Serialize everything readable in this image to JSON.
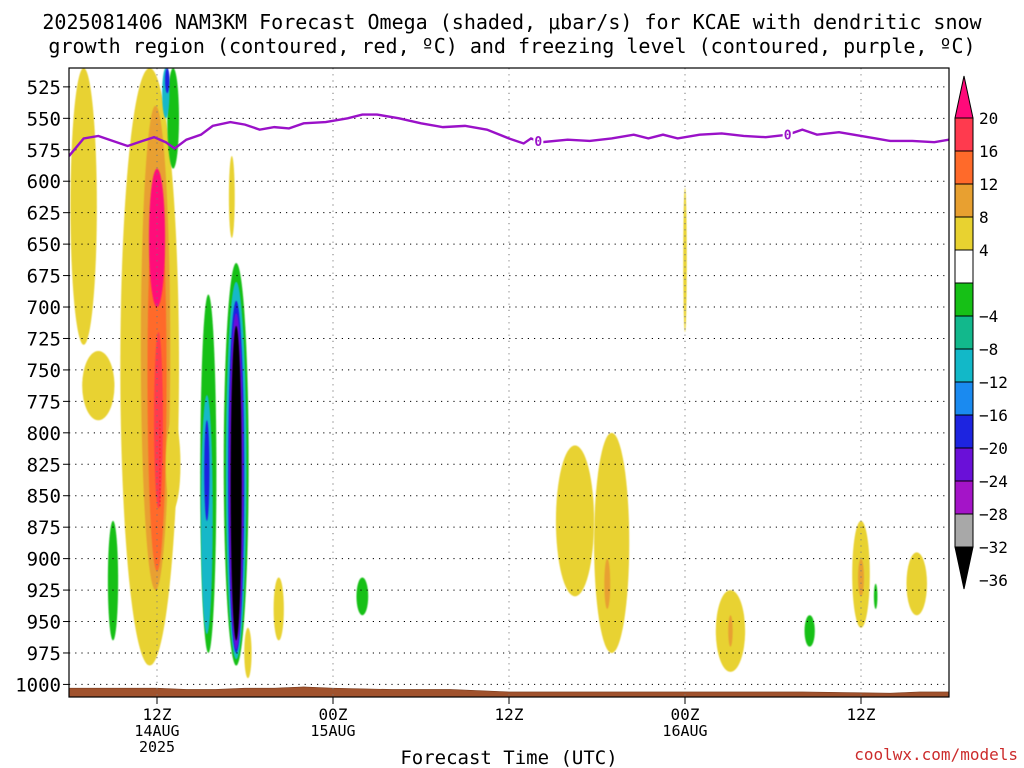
{
  "title_line1": "2025081406 NAM3KM Forecast Omega (shaded, μbar/s) for KCAE with dendritic snow",
  "title_line2": "growth region (contoured, red, ºC) and freezing level (contoured, purple, ºC)",
  "credit": "coolwx.com/models",
  "chart_data": {
    "type": "contour-shaded time-height section",
    "xlabel": "Forecast Time (UTC)",
    "x_ticks": [
      {
        "hour": 12,
        "lines": [
          "12Z",
          "14AUG",
          "2025"
        ]
      },
      {
        "hour": 24,
        "lines": [
          "00Z",
          "15AUG"
        ]
      },
      {
        "hour": 36,
        "lines": [
          "12Z"
        ]
      },
      {
        "hour": 48,
        "lines": [
          "00Z",
          "16AUG"
        ]
      },
      {
        "hour": 60,
        "lines": [
          "12Z"
        ]
      }
    ],
    "xlim_hours": [
      6,
      66
    ],
    "y_ticks": [
      525,
      550,
      575,
      600,
      625,
      650,
      675,
      700,
      725,
      750,
      775,
      800,
      825,
      850,
      875,
      900,
      925,
      950,
      975,
      1000
    ],
    "ylim_hPa": [
      510,
      1010
    ],
    "grid": true,
    "colorbar": {
      "labels": [
        "20",
        "16",
        "12",
        "8",
        "4",
        "−4",
        "−8",
        "−12",
        "−16",
        "−20",
        "−24",
        "−28",
        "−32",
        "−36"
      ],
      "bands": [
        {
          "lo": 16,
          "hi": 20,
          "color": "#ff3a4e"
        },
        {
          "lo": 12,
          "hi": 16,
          "color": "#ff6a2a"
        },
        {
          "lo": 8,
          "hi": 12,
          "color": "#e8a030"
        },
        {
          "lo": 4,
          "hi": 8,
          "color": "#e8d230"
        },
        {
          "lo": -4,
          "hi": 4,
          "color": "#ffffff"
        },
        {
          "lo": -8,
          "hi": -4,
          "color": "#16c016"
        },
        {
          "lo": -12,
          "hi": -8,
          "color": "#12b88c"
        },
        {
          "lo": -16,
          "hi": -12,
          "color": "#12b8c8"
        },
        {
          "lo": -20,
          "hi": -16,
          "color": "#1a8af0"
        },
        {
          "lo": -24,
          "hi": -20,
          "color": "#1d24e0"
        },
        {
          "lo": -28,
          "hi": -24,
          "color": "#6a10d8"
        },
        {
          "lo": -32,
          "hi": -28,
          "color": "#a414c8"
        },
        {
          "lo": -36,
          "hi": -32,
          "color": "#a8a8a8"
        }
      ],
      "top_arrow": "#ff0a7a",
      "bottom_arrow": "#000000"
    },
    "omega_blobs": [
      {
        "t": 7.0,
        "p0": 510,
        "p1": 730,
        "w": 0.9,
        "value": 5
      },
      {
        "t": 8.0,
        "p0": 735,
        "p1": 790,
        "w": 1.1,
        "value": 5
      },
      {
        "t": 9.0,
        "p0": 870,
        "p1": 965,
        "w": 0.35,
        "value": -6
      },
      {
        "t": 11.5,
        "p0": 510,
        "p1": 985,
        "w": 2.0,
        "value": 6
      },
      {
        "t": 11.9,
        "p0": 540,
        "p1": 925,
        "w": 1.0,
        "value": 9
      },
      {
        "t": 12.0,
        "p0": 600,
        "p1": 910,
        "w": 0.65,
        "value": 14
      },
      {
        "t": 12.0,
        "p0": 590,
        "p1": 700,
        "w": 0.55,
        "value": 22
      },
      {
        "t": 12.1,
        "p0": 720,
        "p1": 860,
        "w": 0.3,
        "value": 18
      },
      {
        "t": 13.1,
        "p0": 510,
        "p1": 590,
        "w": 0.4,
        "value": -6
      },
      {
        "t": 12.6,
        "p0": 510,
        "p1": 550,
        "w": 0.25,
        "value": -13
      },
      {
        "t": 12.7,
        "p0": 510,
        "p1": 530,
        "w": 0.15,
        "value": -22
      },
      {
        "t": 13.1,
        "p0": 790,
        "p1": 860,
        "w": 0.5,
        "value": 5
      },
      {
        "t": 15.5,
        "p0": 690,
        "p1": 975,
        "w": 0.55,
        "value": -6
      },
      {
        "t": 15.4,
        "p0": 770,
        "p1": 960,
        "w": 0.4,
        "value": -13
      },
      {
        "t": 15.4,
        "p0": 790,
        "p1": 870,
        "w": 0.18,
        "value": -22
      },
      {
        "t": 17.4,
        "p0": 665,
        "p1": 985,
        "w": 0.85,
        "value": -6
      },
      {
        "t": 17.4,
        "p0": 680,
        "p1": 980,
        "w": 0.7,
        "value": -14
      },
      {
        "t": 17.4,
        "p0": 695,
        "p1": 975,
        "w": 0.55,
        "value": -22
      },
      {
        "t": 17.4,
        "p0": 705,
        "p1": 972,
        "w": 0.48,
        "value": -28
      },
      {
        "t": 17.4,
        "p0": 715,
        "p1": 965,
        "w": 0.38,
        "value": -45
      },
      {
        "t": 18.2,
        "p0": 955,
        "p1": 995,
        "w": 0.25,
        "value": 5
      },
      {
        "t": 17.1,
        "p0": 580,
        "p1": 645,
        "w": 0.2,
        "value": 5
      },
      {
        "t": 20.3,
        "p0": 915,
        "p1": 965,
        "w": 0.35,
        "value": 5
      },
      {
        "t": 26.0,
        "p0": 915,
        "p1": 945,
        "w": 0.4,
        "value": -6
      },
      {
        "t": 40.5,
        "p0": 810,
        "p1": 930,
        "w": 1.3,
        "value": 5
      },
      {
        "t": 43.0,
        "p0": 800,
        "p1": 975,
        "w": 1.2,
        "value": 5
      },
      {
        "t": 42.7,
        "p0": 900,
        "p1": 940,
        "w": 0.2,
        "value": 9
      },
      {
        "t": 48.0,
        "p0": 605,
        "p1": 720,
        "w": 0.12,
        "value": 5
      },
      {
        "t": 51.1,
        "p0": 925,
        "p1": 990,
        "w": 1.0,
        "value": 5
      },
      {
        "t": 51.1,
        "p0": 945,
        "p1": 970,
        "w": 0.15,
        "value": 9
      },
      {
        "t": 56.5,
        "p0": 945,
        "p1": 970,
        "w": 0.35,
        "value": -6
      },
      {
        "t": 60.0,
        "p0": 870,
        "p1": 955,
        "w": 0.6,
        "value": 5
      },
      {
        "t": 60.0,
        "p0": 900,
        "p1": 930,
        "w": 0.2,
        "value": 9
      },
      {
        "t": 61.0,
        "p0": 920,
        "p1": 940,
        "w": 0.12,
        "value": -6
      },
      {
        "t": 63.8,
        "p0": 895,
        "p1": 945,
        "w": 0.7,
        "value": 5
      }
    ],
    "freezing_level": {
      "label": "0",
      "label_hours": [
        38.0,
        55.0
      ],
      "points": [
        [
          6.0,
          580
        ],
        [
          7.0,
          566
        ],
        [
          8.0,
          564
        ],
        [
          9.0,
          568
        ],
        [
          10.0,
          572
        ],
        [
          11.0,
          568
        ],
        [
          11.8,
          565
        ],
        [
          12.6,
          569
        ],
        [
          13.2,
          574
        ],
        [
          14.0,
          567
        ],
        [
          15.0,
          563
        ],
        [
          15.8,
          556
        ],
        [
          17.0,
          553
        ],
        [
          18.0,
          555
        ],
        [
          19.0,
          559
        ],
        [
          20.0,
          557
        ],
        [
          21.0,
          558
        ],
        [
          22.0,
          554
        ],
        [
          23.5,
          553
        ],
        [
          25.0,
          550
        ],
        [
          26.0,
          547
        ],
        [
          27.0,
          547
        ],
        [
          28.5,
          550
        ],
        [
          30.0,
          554
        ],
        [
          31.5,
          557
        ],
        [
          33.0,
          556
        ],
        [
          34.5,
          559
        ],
        [
          36.0,
          566
        ],
        [
          37.0,
          570
        ],
        [
          37.5,
          566
        ],
        [
          38.2,
          569
        ],
        [
          40.0,
          567
        ],
        [
          41.5,
          568
        ],
        [
          43.0,
          566
        ],
        [
          44.5,
          563
        ],
        [
          45.5,
          566
        ],
        [
          46.5,
          563
        ],
        [
          47.5,
          566
        ],
        [
          49.0,
          563
        ],
        [
          50.5,
          562
        ],
        [
          52.0,
          564
        ],
        [
          53.5,
          565
        ],
        [
          55.0,
          563
        ],
        [
          56.0,
          559
        ],
        [
          57.0,
          563
        ],
        [
          58.5,
          561
        ],
        [
          59.5,
          563
        ],
        [
          61.0,
          566
        ],
        [
          62.0,
          568
        ],
        [
          63.5,
          568
        ],
        [
          65.0,
          569
        ],
        [
          66.0,
          567
        ]
      ]
    },
    "dgz_contours": [
      {
        "t": 12.2,
        "p0": 790,
        "p1": 860
      }
    ],
    "terrain": {
      "points": [
        [
          6.0,
          1003
        ],
        [
          12.0,
          1003
        ],
        [
          14.0,
          1004
        ],
        [
          16.0,
          1004
        ],
        [
          18.0,
          1003
        ],
        [
          20.0,
          1003
        ],
        [
          22.0,
          1002
        ],
        [
          24.0,
          1003
        ],
        [
          28.0,
          1004
        ],
        [
          32.0,
          1004
        ],
        [
          36.0,
          1006
        ],
        [
          40.0,
          1006
        ],
        [
          48.0,
          1006
        ],
        [
          56.0,
          1006
        ],
        [
          62.0,
          1007
        ],
        [
          64.0,
          1006
        ],
        [
          66.0,
          1006
        ]
      ]
    }
  }
}
